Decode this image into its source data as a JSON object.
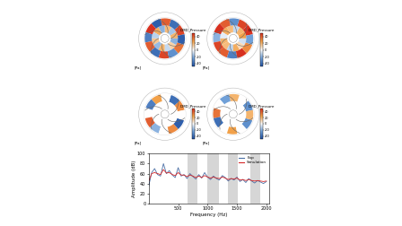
{
  "chart_data": [
    {
      "type": "heatmap",
      "cells": [
        [
          20,
          -15,
          18,
          -20,
          22,
          -12,
          15,
          -18,
          20,
          -10,
          12,
          -20
        ],
        [
          45,
          -40,
          40,
          -45,
          50,
          -35,
          40,
          -40,
          45,
          -30,
          35,
          -45
        ]
      ],
      "colorbar": {
        "label": "DMD_Pressure",
        "unit": "[Pa]",
        "range": [
          -50,
          50
        ],
        "ticks": [
          -40,
          -20,
          0,
          20,
          40
        ]
      }
    },
    {
      "type": "heatmap",
      "cells": [
        [
          25,
          20,
          -10,
          18,
          22,
          -5,
          20,
          18,
          -12,
          22,
          10,
          -8
        ],
        [
          50,
          45,
          -30,
          40,
          50,
          -20,
          45,
          40,
          -35,
          50,
          30,
          -25
        ]
      ],
      "colorbar": {
        "label": "DMD_Pressure",
        "unit": "[Pa]",
        "range": [
          -50,
          50
        ],
        "ticks": [
          -40,
          -20,
          0,
          20,
          40
        ]
      }
    },
    {
      "type": "heatmap",
      "cells": [
        [
          0,
          0,
          0,
          0,
          0,
          0,
          0,
          0,
          0,
          0,
          0,
          0
        ],
        [
          30,
          -40,
          0,
          25,
          -35,
          0,
          40,
          -20,
          0,
          30,
          -45,
          0
        ]
      ],
      "colorbar": {
        "label": "DMD_Pressure",
        "unit": "[Pa]",
        "range": [
          -50,
          50
        ],
        "ticks": [
          -40,
          -20,
          0,
          20,
          40
        ]
      }
    },
    {
      "type": "heatmap",
      "cells": [
        [
          0,
          0,
          0,
          0,
          0,
          0,
          0,
          0,
          0,
          0,
          0,
          0
        ],
        [
          -30,
          0,
          20,
          -25,
          0,
          35,
          -40,
          0,
          25,
          0,
          -30,
          20
        ]
      ],
      "colorbar": {
        "label": "DMD_Pressure",
        "unit": "[Pa]",
        "range": [
          -50,
          50
        ],
        "ticks": [
          -40,
          -20,
          0,
          20,
          40
        ]
      }
    },
    {
      "type": "line",
      "x_label": "Frequency (Hz)",
      "y_label": "Amplitude (dB)",
      "x": [
        0,
        50,
        100,
        150,
        200,
        250,
        300,
        350,
        400,
        450,
        500,
        550,
        600,
        650,
        700,
        750,
        800,
        850,
        900,
        950,
        1000,
        1050,
        1100,
        1150,
        1200,
        1250,
        1300,
        1350,
        1400,
        1450,
        1500,
        1550,
        1600,
        1650,
        1700,
        1750,
        1800,
        1850,
        1900,
        1950,
        2000
      ],
      "series": [
        {
          "name": "Exp",
          "color": "#4a6fa5",
          "values": [
            35,
            62,
            70,
            58,
            55,
            80,
            60,
            66,
            57,
            52,
            72,
            55,
            58,
            50,
            60,
            54,
            49,
            58,
            51,
            62,
            53,
            48,
            55,
            50,
            47,
            56,
            52,
            45,
            50,
            47,
            53,
            44,
            48,
            42,
            50,
            45,
            41,
            46,
            43,
            40,
            44
          ]
        },
        {
          "name": "Simulation",
          "color": "#d62728",
          "values": [
            45,
            60,
            62,
            60,
            58,
            68,
            61,
            62,
            58,
            56,
            62,
            57,
            57,
            54,
            57,
            55,
            52,
            55,
            52,
            56,
            53,
            51,
            53,
            51,
            50,
            53,
            51,
            48,
            50,
            49,
            51,
            47,
            48,
            46,
            48,
            46,
            45,
            46,
            45,
            44,
            45
          ]
        }
      ],
      "bands": [
        [
          660,
          830
        ],
        [
          1000,
          1190
        ],
        [
          1350,
          1520
        ],
        [
          1720,
          1890
        ]
      ],
      "xlim": [
        0,
        2050
      ],
      "xticks": [
        500,
        1000,
        1500,
        2000
      ],
      "ylim": [
        0,
        100
      ],
      "yticks": [
        0,
        20,
        40,
        60,
        80,
        100
      ],
      "legend": "upper right"
    }
  ]
}
